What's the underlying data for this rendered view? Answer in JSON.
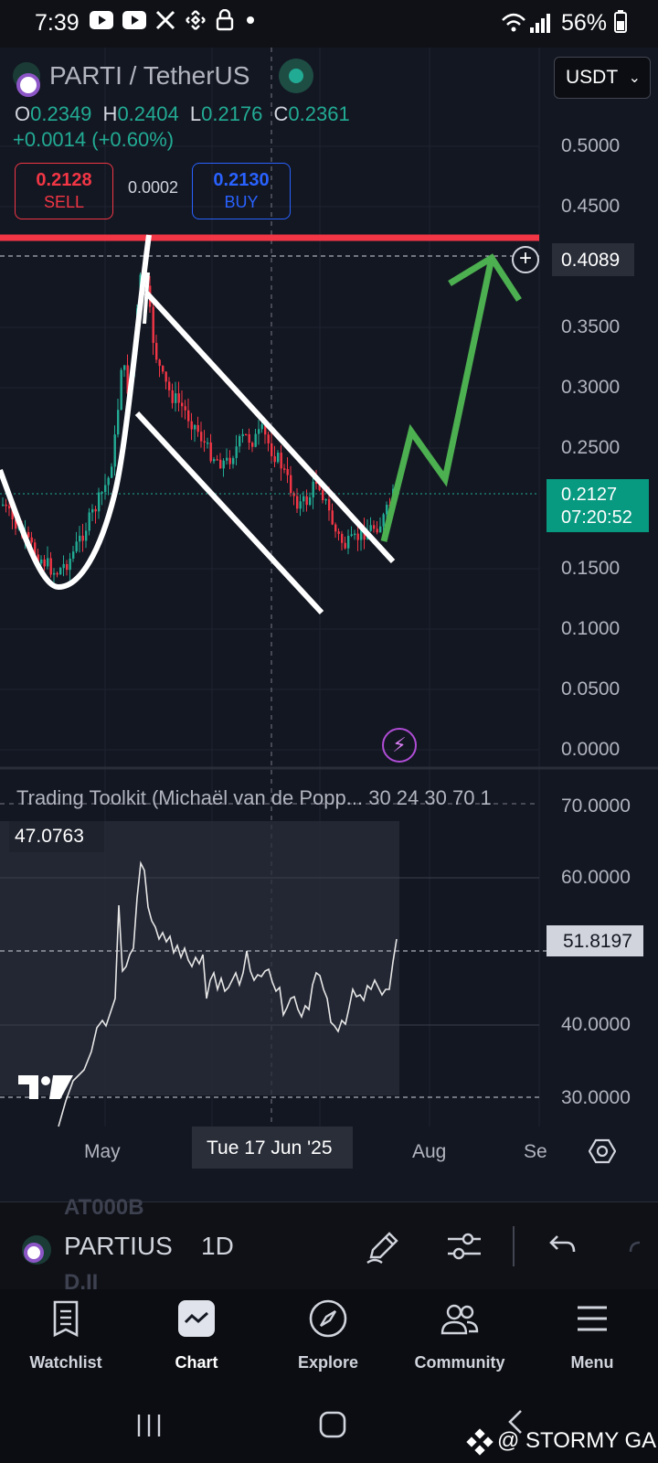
{
  "status_bar": {
    "time": "7:39",
    "battery": "56%",
    "icons": [
      "youtube-icon",
      "youtube-icon",
      "x-icon",
      "binance-icon",
      "lock-icon",
      "dot-icon"
    ]
  },
  "chart": {
    "symbol_title": "PARTI / TetherUS",
    "currency": "USDT",
    "ohlc": {
      "o_label": "O",
      "o": "0.2349",
      "h_label": "H",
      "h": "0.2404",
      "l_label": "L",
      "l": "0.2176",
      "c_label": "C",
      "c": "0.2361"
    },
    "change": "+0.0014 (+0.60%)",
    "sell": {
      "price": "0.2128",
      "label": "SELL"
    },
    "buy": {
      "price": "0.2130",
      "label": "BUY"
    },
    "spread": "0.0002",
    "price_axis": [
      "0.5000",
      "0.4500",
      "0.3500",
      "0.3000",
      "0.2500",
      "0.1500",
      "0.1000",
      "0.0500",
      "0.0000"
    ],
    "horizontal_line_price": "0.4089",
    "current_price": "0.2127",
    "countdown": "07:20:52",
    "colors": {
      "up": "#22ab94",
      "down": "#f23645",
      "resistance": "#f23645",
      "arrow": "#4caf50",
      "background": "#131722"
    }
  },
  "indicator": {
    "title": "Trading Toolkit (Michaël van de Popp...  30  24  30  70  1",
    "value": "47.0763",
    "axis": [
      "70.0000",
      "60.0000",
      "40.0000",
      "30.0000"
    ],
    "current": "51.8197"
  },
  "time_axis": {
    "labels": [
      "May",
      "Aug",
      "Se"
    ],
    "cursor": "Tue 17 Jun '25"
  },
  "toolbar": {
    "symbol": "PARTIUS",
    "interval": "1D",
    "ghost_top": "AT000B",
    "ghost_bottom": "D.II"
  },
  "bottom_nav": {
    "items": [
      {
        "label": "Watchlist",
        "icon": "watchlist-icon"
      },
      {
        "label": "Chart",
        "icon": "chart-icon"
      },
      {
        "label": "Explore",
        "icon": "compass-icon"
      },
      {
        "label": "Community",
        "icon": "community-icon"
      },
      {
        "label": "Menu",
        "icon": "menu-icon"
      }
    ]
  },
  "watermark": "@ STORMY GAL"
}
